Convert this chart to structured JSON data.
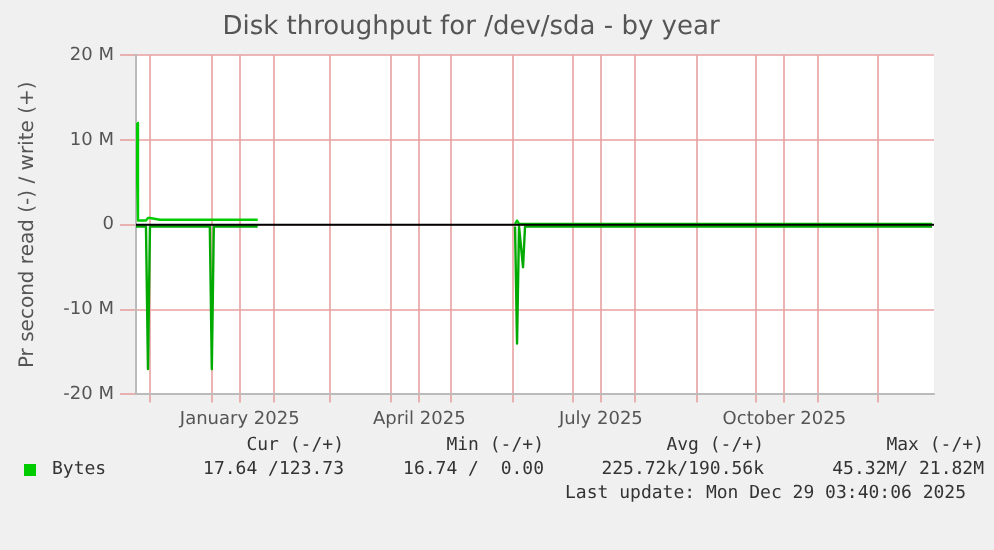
{
  "chart_data": {
    "type": "line",
    "title": "Disk throughput for /dev/sda - by year",
    "ylabel": "Pr second read (-) / write (+)",
    "x": [
      "2024-11-24",
      "2024-11-25",
      "2024-11-29",
      "2024-11-30",
      "2024-12-01",
      "2024-12-06",
      "2024-12-31",
      "2025-01-01",
      "2025-01-02",
      "2025-01-24",
      "2025-01-25",
      "2025-06-02",
      "2025-06-03",
      "2025-06-04",
      "2025-06-06",
      "2025-06-07",
      "2025-12-28"
    ],
    "series": [
      {
        "name": "Bytes",
        "color": "#00cc00",
        "values": [
          12000000,
          500000,
          500000,
          800000,
          800000,
          600000,
          600000,
          600000,
          600000,
          600000,
          null,
          100000,
          500000,
          100000,
          100000,
          100000,
          100000
        ]
      },
      {
        "color": "#00aa00",
        "values": [
          -200000,
          -200000,
          -200000,
          -17000000,
          -200000,
          -200000,
          -200000,
          -17000000,
          -200000,
          -200000,
          null,
          -200000,
          -14000000,
          -200000,
          -5000000,
          -200000,
          -200000
        ]
      }
    ],
    "xlim": [
      "2024-11-24",
      "2025-12-29"
    ],
    "xticks": [
      {
        "value": "2024-12-01",
        "label": null
      },
      {
        "value": "2025-01-01",
        "label": null
      },
      {
        "value": "2025-01-15",
        "label": "January 2025"
      },
      {
        "value": "2025-02-01",
        "label": null
      },
      {
        "value": "2025-03-01",
        "label": null
      },
      {
        "value": "2025-04-01",
        "label": null
      },
      {
        "value": "2025-04-15",
        "label": "April 2025"
      },
      {
        "value": "2025-05-01",
        "label": null
      },
      {
        "value": "2025-06-01",
        "label": null
      },
      {
        "value": "2025-07-01",
        "label": null
      },
      {
        "value": "2025-07-15",
        "label": "July 2025"
      },
      {
        "value": "2025-08-01",
        "label": null
      },
      {
        "value": "2025-09-01",
        "label": null
      },
      {
        "value": "2025-10-01",
        "label": null
      },
      {
        "value": "2025-10-15",
        "label": "October 2025"
      },
      {
        "value": "2025-11-01",
        "label": null
      },
      {
        "value": "2025-12-01",
        "label": null
      }
    ],
    "ylim": [
      -20000000,
      20000000
    ],
    "yticks": [
      {
        "value": -20000000,
        "label": "-20 M"
      },
      {
        "value": -10000000,
        "label": "-10 M"
      },
      {
        "value": 0,
        "label": "0"
      },
      {
        "value": 10000000,
        "label": "10 M"
      },
      {
        "value": 20000000,
        "label": "20 M"
      }
    ],
    "grid": true,
    "legend": "bottom",
    "marker": "none",
    "line_style": "solid",
    "annotations": [
      "Cur (-/+)",
      "Min (-/+)",
      "Avg (-/+)",
      "Max (-/+)",
      "17.64 /123.73",
      "16.74 /  0.00",
      "225.72k/190.56k",
      "45.32M/ 21.82M",
      "Last update: Mon Dec 29 03:40:06 2025"
    ]
  }
}
